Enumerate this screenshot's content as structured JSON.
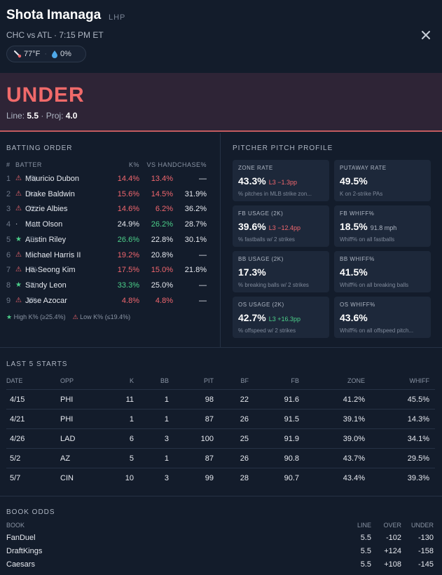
{
  "header": {
    "player_name": "Shota Imanaga",
    "hand": "LHP",
    "matchup": "CHC vs ATL · 7:15 PM ET",
    "weather": {
      "temp": "77°F",
      "precip": "0%"
    }
  },
  "banner": {
    "pick": "UNDER",
    "line_label": "Line:",
    "line": "5.5",
    "proj_label": "Proj:",
    "proj": "4.0"
  },
  "batting_order": {
    "title": "BATTING ORDER",
    "headers": {
      "num": "#",
      "batter": "BATTER",
      "k": "K%",
      "vs_hand": "VS HAND",
      "chase": "CHASE%"
    },
    "rows": [
      {
        "num": "1",
        "mark": "⚠",
        "name": "Mauricio Dubon",
        "hand": "(R)",
        "k": "14.4%",
        "vs": "13.4%",
        "chase": "—"
      },
      {
        "num": "2",
        "mark": "⚠",
        "name": "Drake Baldwin",
        "hand": "(L)",
        "k": "15.6%",
        "vs": "14.5%",
        "chase": "31.9%"
      },
      {
        "num": "3",
        "mark": "⚠",
        "name": "Ozzie Albies",
        "hand": "(S)",
        "k": "14.6%",
        "vs": "6.2%",
        "chase": "36.2%"
      },
      {
        "num": "4",
        "mark": "·",
        "name": "Matt Olson",
        "hand": "(L)",
        "k": "24.9%",
        "vs": "26.2%",
        "chase": "28.7%"
      },
      {
        "num": "5",
        "mark": "★",
        "name": "Austin Riley",
        "hand": "(R)",
        "k": "26.6%",
        "vs": "22.8%",
        "chase": "30.1%"
      },
      {
        "num": "6",
        "mark": "⚠",
        "name": "Michael Harris II",
        "hand": "(L)",
        "k": "19.2%",
        "vs": "20.8%",
        "chase": "—"
      },
      {
        "num": "7",
        "mark": "⚠",
        "name": "Ha-Seong Kim",
        "hand": "(R)",
        "k": "17.5%",
        "vs": "15.0%",
        "chase": "21.8%"
      },
      {
        "num": "8",
        "mark": "★",
        "name": "Sandy Leon",
        "hand": "(S)",
        "k": "33.3%",
        "vs": "25.0%",
        "chase": "—"
      },
      {
        "num": "9",
        "mark": "⚠",
        "name": "Jose Azocar",
        "hand": "(R)",
        "k": "4.8%",
        "vs": "4.8%",
        "chase": "—"
      }
    ],
    "legend": {
      "high_star": "★",
      "high": "High K% (≥25.4%)",
      "low_mark": "⚠",
      "low": "Low K% (≤19.4%)"
    }
  },
  "pitch_profile": {
    "title": "PITCHER PITCH PROFILE",
    "cards": [
      {
        "label": "ZONE RATE",
        "value": "43.3%",
        "delta": "L3 −1.3pp",
        "delta_color": "#f2676e",
        "sub": "% pitches in MLB strike zon..."
      },
      {
        "label": "PUTAWAY RATE",
        "value": "49.5%",
        "delta": "",
        "delta_color": "",
        "sub": "K on 2-strike PAs"
      },
      {
        "label": "FB USAGE (2K)",
        "value": "39.6%",
        "delta": "L3 −12.4pp",
        "delta_color": "#f2676e",
        "sub": "% fastballs w/ 2 strikes"
      },
      {
        "label": "FB WHIFF%",
        "value": "18.5%",
        "delta": "91.8 mph",
        "delta_color": "#aeb6c3",
        "sub": "Whiff% on all fastballs"
      },
      {
        "label": "BB USAGE (2K)",
        "value": "17.3%",
        "delta": "",
        "delta_color": "",
        "sub": "% breaking balls w/ 2 strikes"
      },
      {
        "label": "BB WHIFF%",
        "value": "41.5%",
        "delta": "",
        "delta_color": "",
        "sub": "Whiff% on all breaking balls"
      },
      {
        "label": "OS USAGE (2K)",
        "value": "42.7%",
        "delta": "L3 +16.3pp",
        "delta_color": "#4cd08a",
        "sub": "% offspeed w/ 2 strikes"
      },
      {
        "label": "OS WHIFF%",
        "value": "43.6%",
        "delta": "",
        "delta_color": "",
        "sub": "Whiff% on all offspeed pitch..."
      }
    ]
  },
  "last_starts": {
    "title": "LAST 5 STARTS",
    "headers": [
      "DATE",
      "OPP",
      "K",
      "BB",
      "PIT",
      "BF",
      "FB",
      "ZONE",
      "WHIFF"
    ],
    "rows": [
      [
        "4/15",
        "PHI",
        "11",
        "1",
        "98",
        "22",
        "91.6",
        "41.2%",
        "45.5%"
      ],
      [
        "4/21",
        "PHI",
        "1",
        "1",
        "87",
        "26",
        "91.5",
        "39.1%",
        "14.3%"
      ],
      [
        "4/26",
        "LAD",
        "6",
        "3",
        "100",
        "25",
        "91.9",
        "39.0%",
        "34.1%"
      ],
      [
        "5/2",
        "AZ",
        "5",
        "1",
        "87",
        "26",
        "90.8",
        "43.7%",
        "29.5%"
      ],
      [
        "5/7",
        "CIN",
        "10",
        "3",
        "99",
        "28",
        "90.7",
        "43.4%",
        "39.3%"
      ]
    ]
  },
  "book_odds": {
    "title": "BOOK ODDS",
    "headers": {
      "book": "BOOK",
      "line": "LINE",
      "over": "OVER",
      "under": "UNDER"
    },
    "rows": [
      {
        "book": "FanDuel",
        "line": "5.5",
        "over": "-102",
        "under": "-130"
      },
      {
        "book": "DraftKings",
        "line": "5.5",
        "over": "+124",
        "under": "-158"
      },
      {
        "book": "Caesars",
        "line": "5.5",
        "over": "+108",
        "under": "-145"
      }
    ]
  },
  "colors": {
    "accent_red": "#f06a6a",
    "positive": "#4cd08a",
    "negative": "#f2676e",
    "background": "#131c2b"
  }
}
